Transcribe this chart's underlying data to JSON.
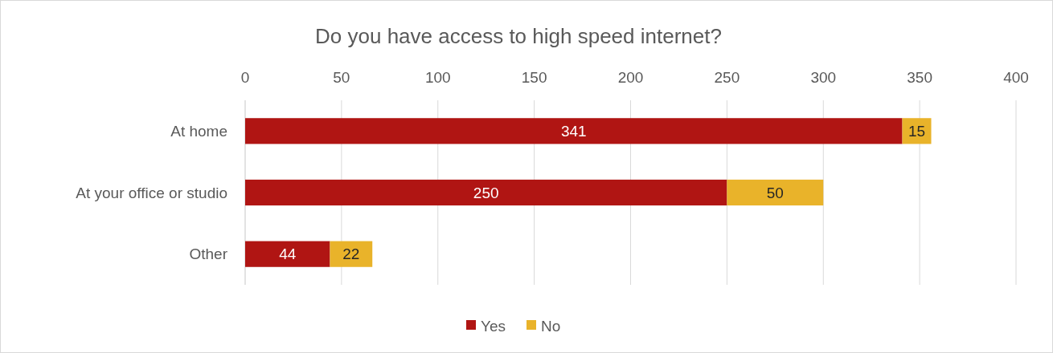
{
  "chart_data": {
    "type": "bar",
    "orientation": "horizontal",
    "stacked": true,
    "title": "Do you have access to high speed internet?",
    "categories": [
      "At home",
      "At your office or studio",
      "Other"
    ],
    "series": [
      {
        "name": "Yes",
        "color": "#b01513",
        "values": [
          341,
          250,
          44
        ]
      },
      {
        "name": "No",
        "color": "#e9b32a",
        "values": [
          15,
          50,
          22
        ]
      }
    ],
    "xlim": [
      0,
      400
    ],
    "xticks": [
      0,
      50,
      100,
      150,
      200,
      250,
      300,
      350,
      400
    ],
    "grid": "x",
    "legend": "bottom",
    "data_labels": true
  }
}
